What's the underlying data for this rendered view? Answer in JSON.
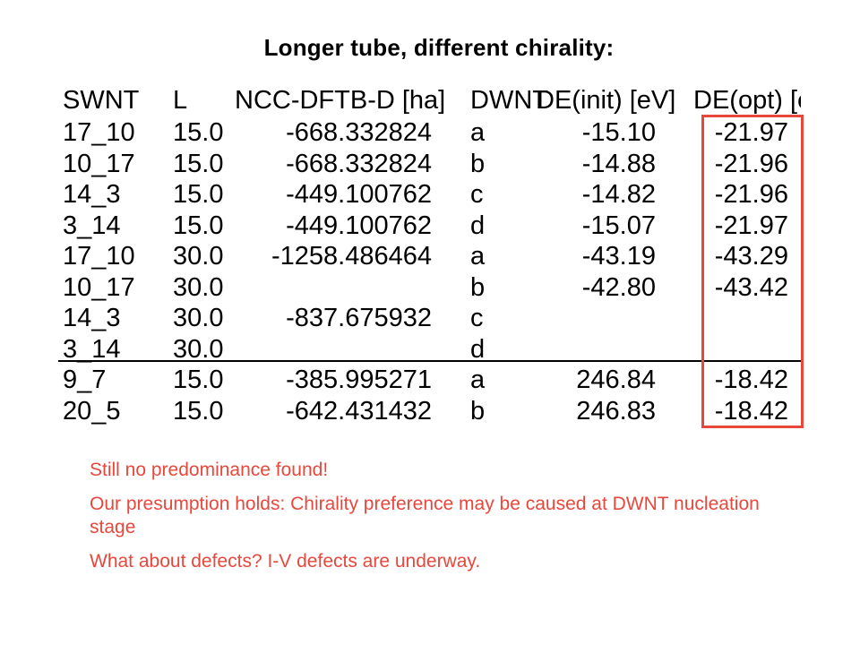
{
  "title": "Longer tube, different chirality:",
  "table": {
    "headers": {
      "swnt": "SWNT",
      "l": "L",
      "ncc": "NCC-DFTB-D [ha]",
      "dwnt": "DWNT",
      "de_init": "DE(init) [eV]",
      "de_opt": "DE(opt) [eV]"
    },
    "rows": [
      {
        "swnt": "17_10",
        "l": "15.0",
        "ncc": "-668.332824",
        "dwnt": "a",
        "de_init": "-15.10",
        "de_opt": "-21.97"
      },
      {
        "swnt": "10_17",
        "l": "15.0",
        "ncc": "-668.332824",
        "dwnt": "b",
        "de_init": "-14.88",
        "de_opt": "-21.96"
      },
      {
        "swnt": "14_3",
        "l": "15.0",
        "ncc": "-449.100762",
        "dwnt": "c",
        "de_init": "-14.82",
        "de_opt": "-21.96"
      },
      {
        "swnt": "3_14",
        "l": "15.0",
        "ncc": "-449.100762",
        "dwnt": "d",
        "de_init": "-15.07",
        "de_opt": "-21.97"
      },
      {
        "swnt": "17_10",
        "l": "30.0",
        "ncc": "-1258.486464",
        "dwnt": "a",
        "de_init": "-43.19",
        "de_opt": "-43.29"
      },
      {
        "swnt": "10_17",
        "l": "30.0",
        "ncc": "",
        "dwnt": "b",
        "de_init": "-42.80",
        "de_opt": "-43.42"
      },
      {
        "swnt": "14_3",
        "l": "30.0",
        "ncc": "-837.675932",
        "dwnt": "c",
        "de_init": "",
        "de_opt": ""
      },
      {
        "swnt": "3_14",
        "l": "30.0",
        "ncc": "",
        "dwnt": "d",
        "de_init": "",
        "de_opt": ""
      },
      {
        "swnt": "9_7",
        "l": "15.0",
        "ncc": "-385.995271",
        "dwnt": "a",
        "de_init": "246.84",
        "de_opt": "-18.42"
      },
      {
        "swnt": "20_5",
        "l": "15.0",
        "ncc": "-642.431432",
        "dwnt": "b",
        "de_init": "246.83",
        "de_opt": "-18.42"
      }
    ]
  },
  "notes": [
    "Still no predominance found!",
    "Our presumption holds: Chirality preference may be caused at DWNT nucleation stage",
    "What about defects?  I-V defects are underway."
  ],
  "colors": {
    "accent": "#e8483c",
    "text": "#000000",
    "background": "#ffffff"
  }
}
